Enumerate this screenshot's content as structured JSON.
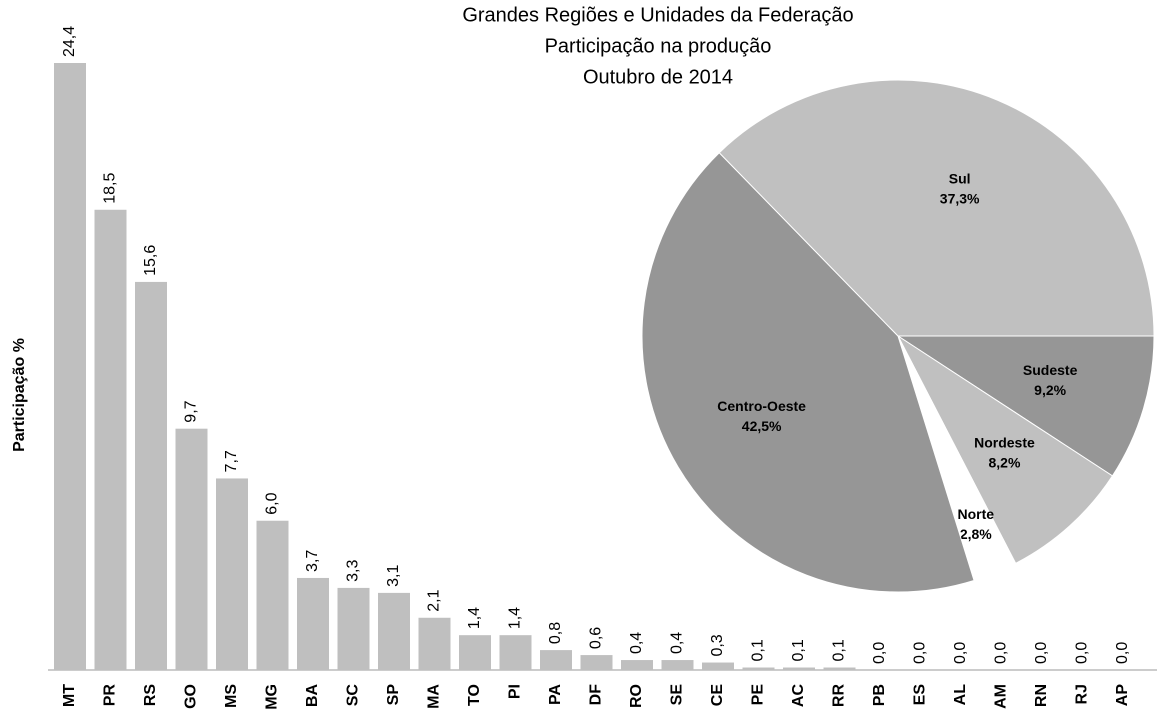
{
  "chart_data": [
    {
      "type": "bar",
      "y_label": "Participação %",
      "categories": [
        "MT",
        "PR",
        "RS",
        "GO",
        "MS",
        "MG",
        "BA",
        "SC",
        "SP",
        "MA",
        "TO",
        "PI",
        "PA",
        "DF",
        "RO",
        "SE",
        "CE",
        "PE",
        "AC",
        "RR",
        "PB",
        "ES",
        "AL",
        "AM",
        "RN",
        "RJ",
        "AP"
      ],
      "values": [
        24.4,
        18.5,
        15.6,
        9.7,
        7.7,
        6.0,
        3.7,
        3.3,
        3.1,
        2.1,
        1.4,
        1.4,
        0.8,
        0.6,
        0.4,
        0.4,
        0.3,
        0.1,
        0.1,
        0.1,
        0.0,
        0.0,
        0.0,
        0.0,
        0.0,
        0.0,
        0.0
      ],
      "value_labels": [
        "24,4",
        "18,5",
        "15,6",
        "9,7",
        "7,7",
        "6,0",
        "3,7",
        "3,3",
        "3,1",
        "2,1",
        "1,4",
        "1,4",
        "0,8",
        "0,6",
        "0,4",
        "0,4",
        "0,3",
        "0,1",
        "0,1",
        "0,1",
        "0,0",
        "0,0",
        "0,0",
        "0,0",
        "0,0",
        "0,0",
        "0,0"
      ],
      "color": "#bfbfbf"
    },
    {
      "type": "pie",
      "title": "Grandes Regiões e Unidades da Federação",
      "subtitle": "Participação na produção",
      "date": "Outubro de 2014",
      "categories": [
        "Sudeste",
        "Nordeste",
        "Norte",
        "Centro-Oeste",
        "Sul"
      ],
      "values": [
        9.2,
        8.2,
        2.8,
        42.5,
        37.3
      ],
      "value_labels": [
        "9,2%",
        "8,2%",
        "2,8%",
        "42,5%",
        "37,3%"
      ],
      "colors": [
        "#969696",
        "#c0c0c0",
        "#ffffff",
        "#969696",
        "#c0c0c0"
      ]
    }
  ]
}
